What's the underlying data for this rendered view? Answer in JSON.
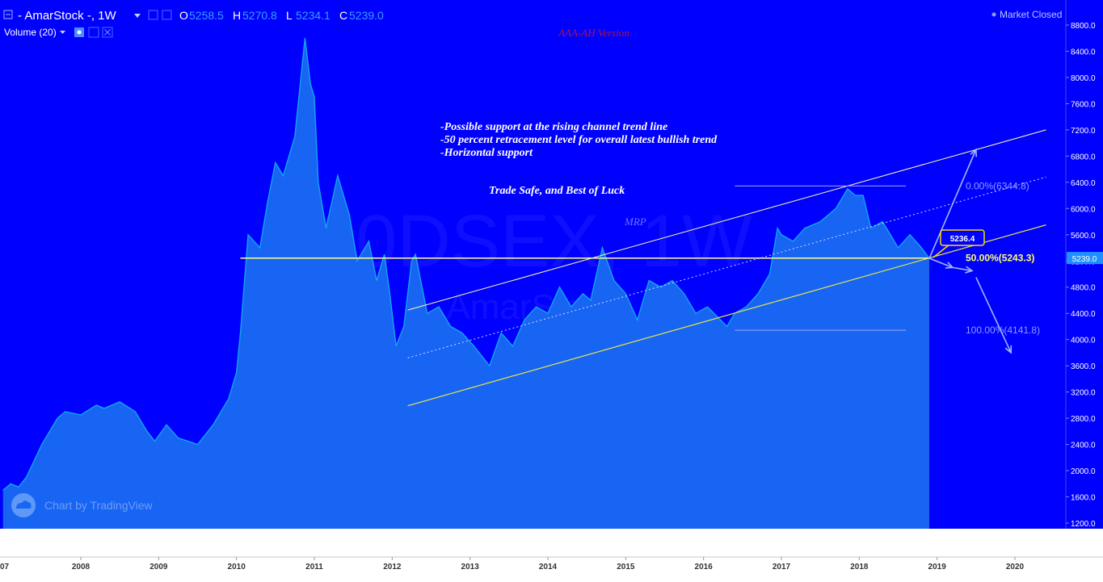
{
  "header": {
    "symbol_title": "- AmarStock -, 1W",
    "ohlc": [
      {
        "key": "O",
        "value": "5258.5"
      },
      {
        "key": "H",
        "value": "5270.8"
      },
      {
        "key": "L",
        "value": "5234.1"
      },
      {
        "key": "C",
        "value": "5239.0"
      }
    ],
    "volume_label": "Volume (20)",
    "market_status": "Market Closed",
    "top_red_note": "AAA-AH Version"
  },
  "watermark": {
    "main": "00DSEX, 1W",
    "sub": "AmarStock"
  },
  "annotations": {
    "note_lines": [
      "-Possible support at the rising channel trend line",
      "-50 percent retracement level for overall latest bullish trend",
      "-Horizontal support"
    ],
    "note_footer": "Trade Safe, and Best of Luck",
    "author_tag": "MRP",
    "callout_value": "5236.4",
    "fib_levels": [
      {
        "label": "0.00%(6344.8)",
        "value": 6344.8,
        "highlight": false
      },
      {
        "label": "50.00%(5243.3)",
        "value": 5243.3,
        "highlight": true
      },
      {
        "label": "100.00%(4141.8)",
        "value": 4141.8,
        "highlight": false
      }
    ],
    "branding": "Chart by TradingView"
  },
  "colors": {
    "background": "#0000ff",
    "area_fill": "#1a6cf2",
    "price_line": "#12a6f0",
    "horizontal_support": "#ffff88",
    "channel_upper": "#ffffaa",
    "channel_lower": "#e6e64c",
    "price_tag": "#1e90ff",
    "callout_border": "#ffd800"
  },
  "chart_data": {
    "type": "area",
    "title": "- AmarStock -, 1W",
    "xlabel": "",
    "ylabel": "",
    "x_ticks": [
      "2008",
      "2009",
      "2010",
      "2011",
      "2012",
      "2013",
      "2014",
      "2015",
      "2016",
      "2017",
      "2018",
      "2019",
      "2020"
    ],
    "x_range": [
      2007.0,
      2020.6
    ],
    "y_ticks": [
      "1200.0",
      "1600.0",
      "2000.0",
      "2400.0",
      "2800.0",
      "3200.0",
      "3600.0",
      "4000.0",
      "4400.0",
      "4800.0",
      "5200.0",
      "5600.0",
      "6000.0",
      "6400.0",
      "6800.0",
      "7200.0",
      "7600.0",
      "8000.0",
      "8400.0",
      "8800.0"
    ],
    "ylim": [
      1200,
      9000
    ],
    "last_price_label": "5239.0",
    "last_price": 5239.0,
    "grid": false,
    "series": [
      {
        "x": [
          2007.0,
          2007.1,
          2007.2,
          2007.3,
          2007.5,
          2007.7,
          2007.8,
          2008.0,
          2008.2,
          2008.3,
          2008.5,
          2008.7,
          2008.85,
          2008.95,
          2009.1,
          2009.25,
          2009.5,
          2009.7,
          2009.9,
          2010.0,
          2010.05,
          2010.15,
          2010.3,
          2010.4,
          2010.5,
          2010.6,
          2010.75,
          2010.88,
          2010.95,
          2011.0,
          2011.05,
          2011.15,
          2011.3,
          2011.45,
          2011.55,
          2011.7,
          2011.8,
          2011.9,
          2011.97,
          2012.05,
          2012.15,
          2012.25,
          2012.3,
          2012.45,
          2012.6,
          2012.75,
          2012.9,
          2013.05,
          2013.25,
          2013.4,
          2013.55,
          2013.7,
          2013.85,
          2014.0,
          2014.15,
          2014.3,
          2014.45,
          2014.55,
          2014.7,
          2014.85,
          2015.0,
          2015.15,
          2015.3,
          2015.45,
          2015.6,
          2015.75,
          2015.9,
          2016.05,
          2016.3,
          2016.4,
          2016.55,
          2016.7,
          2016.85,
          2016.95,
          2017.0,
          2017.15,
          2017.3,
          2017.5,
          2017.7,
          2017.85,
          2017.95,
          2018.05,
          2018.15,
          2018.3,
          2018.5,
          2018.65,
          2018.8,
          2018.9
        ],
        "values": [
          1700,
          1800,
          1750,
          1900,
          2400,
          2800,
          2900,
          2850,
          3000,
          2950,
          3050,
          2900,
          2600,
          2450,
          2700,
          2500,
          2400,
          2700,
          3100,
          3500,
          4100,
          5600,
          5400,
          6100,
          6700,
          6500,
          7100,
          8600,
          7900,
          7700,
          6400,
          5700,
          6500,
          5900,
          5200,
          5500,
          4900,
          5300,
          4700,
          3900,
          4200,
          5200,
          5300,
          4400,
          4500,
          4200,
          4100,
          3900,
          3600,
          4100,
          3900,
          4300,
          4500,
          4400,
          4800,
          4500,
          4700,
          4600,
          5400,
          4900,
          4700,
          4300,
          4900,
          4800,
          4900,
          4700,
          4400,
          4500,
          4200,
          4400,
          4500,
          4700,
          5000,
          5700,
          5600,
          5500,
          5700,
          5800,
          6000,
          6300,
          6200,
          6200,
          5700,
          5800,
          5400,
          5600,
          5400,
          5239
        ]
      }
    ],
    "overlays": {
      "horizontal_support": {
        "value": 5243.3,
        "from_x": 2010.05,
        "to_x": 2018.9
      },
      "channel_upper": [
        [
          2012.2,
          4450
        ],
        [
          2020.4,
          7200
        ]
      ],
      "channel_mid": [
        [
          2012.2,
          3720
        ],
        [
          2020.4,
          6480
        ]
      ],
      "channel_lower": [
        [
          2012.2,
          2990
        ],
        [
          2020.4,
          5750
        ]
      ],
      "fib_from_x": 2016.4,
      "fib_to_x": 2018.6,
      "projection_arrows": [
        {
          "from": [
            2018.9,
            5240
          ],
          "to": [
            2019.5,
            6900
          ]
        },
        {
          "from": [
            2018.9,
            5240
          ],
          "to": [
            2019.2,
            5100
          ]
        },
        {
          "from": [
            2019.2,
            5100
          ],
          "to": [
            2019.45,
            5050
          ]
        },
        {
          "from": [
            2019.5,
            4950
          ],
          "to": [
            2019.95,
            3800
          ]
        }
      ]
    }
  }
}
